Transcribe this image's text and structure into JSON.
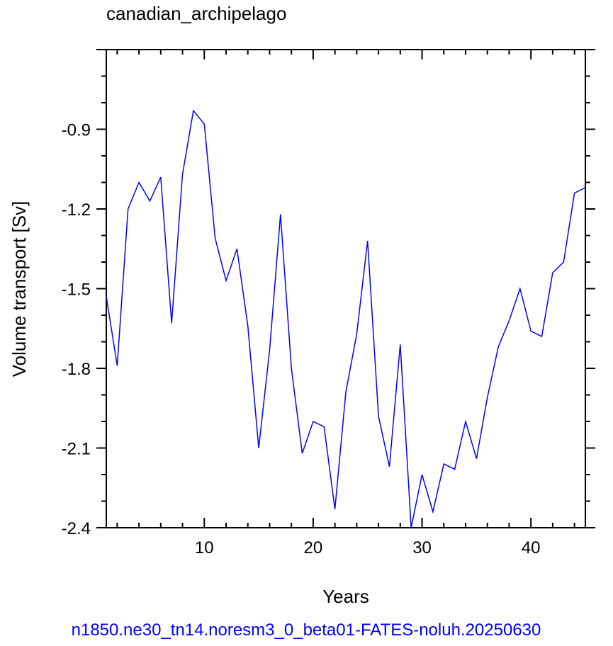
{
  "chart_data": {
    "type": "line",
    "title": "canadian_archipelago",
    "xlabel": "Years",
    "ylabel": "Volume transport [Sv]",
    "footer": "n1850.ne30_tn14.noresm3_0_beta01-FATES-noluh.20250630",
    "xlim": [
      1,
      45
    ],
    "ylim": [
      -2.4,
      -0.6
    ],
    "x_ticks": [
      10,
      20,
      30,
      40
    ],
    "x_tick_labels": [
      "10",
      "20",
      "30",
      "40"
    ],
    "y_ticks": [
      -2.4,
      -2.1,
      -1.8,
      -1.5,
      -1.2,
      -0.9
    ],
    "y_tick_labels": [
      "-2.4",
      "-2.1",
      "-1.8",
      "-1.5",
      "-1.2",
      "-0.9"
    ],
    "grid": false,
    "line_color": "#0000ff",
    "series": [
      {
        "x": [
          1,
          2,
          3,
          4,
          5,
          6,
          7,
          8,
          9,
          10,
          11,
          12,
          13,
          14,
          15,
          16,
          17,
          18,
          19,
          20,
          21,
          22,
          23,
          24,
          25,
          26,
          27,
          28,
          29,
          30,
          31,
          32,
          33,
          34,
          35,
          36,
          37,
          38,
          39,
          40,
          41,
          42,
          43,
          44,
          45
        ],
        "values": [
          -1.53,
          -1.79,
          -1.2,
          -1.1,
          -1.17,
          -1.08,
          -1.63,
          -1.07,
          -0.83,
          -0.88,
          -1.31,
          -1.47,
          -1.35,
          -1.64,
          -2.1,
          -1.73,
          -1.22,
          -1.8,
          -2.12,
          -2.0,
          -2.02,
          -2.33,
          -1.89,
          -1.67,
          -1.32,
          -1.98,
          -2.17,
          -1.71,
          -2.4,
          -2.2,
          -2.34,
          -2.16,
          -2.18,
          -2.0,
          -2.14,
          -1.91,
          -1.72,
          -1.62,
          -1.5,
          -1.66,
          -1.68,
          -1.44,
          -1.4,
          -1.14,
          -1.12
        ]
      }
    ]
  }
}
